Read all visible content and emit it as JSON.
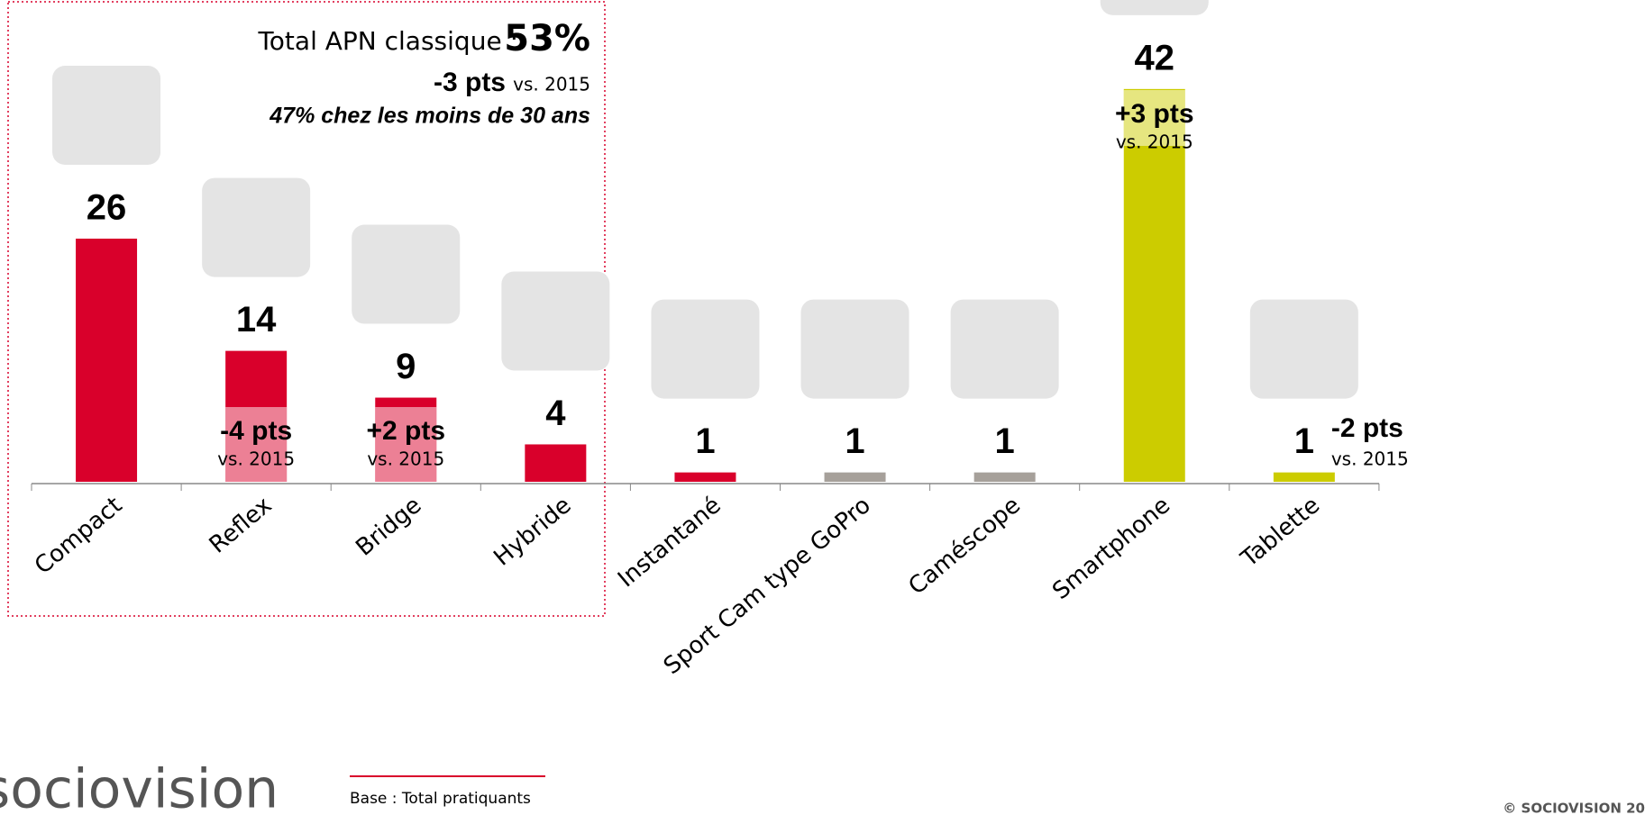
{
  "chart_data": {
    "type": "bar",
    "categories": [
      "Compact",
      "Reflex",
      "Bridge",
      "Hybride",
      "Instantané",
      "Sport Cam type GoPro",
      "Caméscope",
      "Smartphone",
      "Tablette"
    ],
    "values": [
      26,
      14,
      9,
      4,
      1,
      1,
      1,
      42,
      1
    ],
    "colors": [
      "#d9002b",
      "#d9002b",
      "#d9002b",
      "#d9002b",
      "#d9002b",
      "#a6a09a",
      "#a6a09a",
      "#cccc00",
      "#cccc00"
    ],
    "deltas": [
      null,
      "-4 pts",
      "+2 pts",
      null,
      null,
      null,
      null,
      "+3 pts",
      "-2 pts"
    ],
    "delta_note": "vs. 2015",
    "box": {
      "total_label": "Total APN classique :",
      "total_value": "53%",
      "change": "-3 pts",
      "change_note": "vs. 2015",
      "young": "47% chez les moins de 30 ans"
    }
  },
  "footer": {
    "logo": "sociovision",
    "base": "Base : Total pratiquants",
    "copyright": "© SOCIOVISION 20"
  }
}
